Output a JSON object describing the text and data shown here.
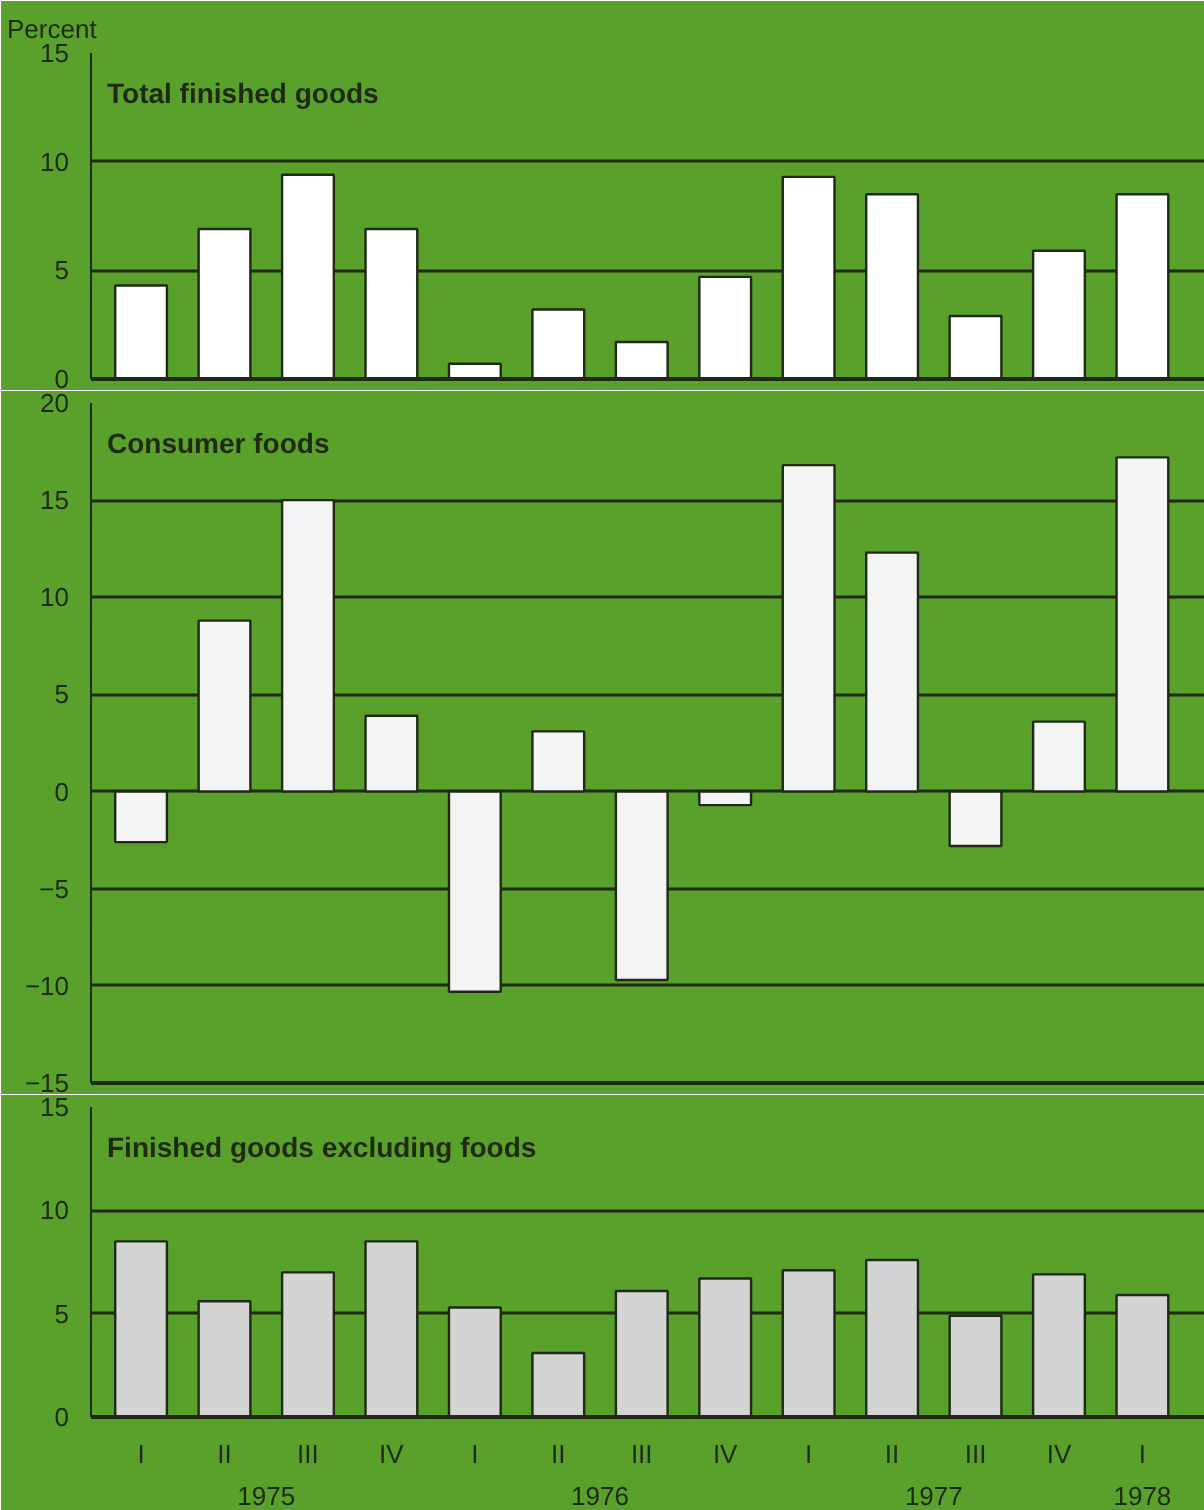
{
  "chart_data": [
    {
      "type": "bar",
      "title": "Total finished goods",
      "ylabel": "Percent",
      "categories": [
        null,
        null,
        null,
        null,
        null,
        null,
        null,
        null,
        null,
        null,
        null,
        null,
        null
      ],
      "series": [
        {
          "color": "#ffffff",
          "values": [
            4.3,
            6.9,
            9.4,
            6.9,
            0.7,
            3.2,
            1.7,
            4.7,
            9.3,
            8.5,
            2.9,
            5.9,
            8.5
          ]
        }
      ],
      "ylim": [
        0,
        15
      ],
      "yticks": [
        0,
        5,
        10,
        15
      ],
      "grid": "y",
      "tick_labels": "y"
    },
    {
      "type": "bar",
      "title": "Consumer foods",
      "categories": [
        null,
        null,
        null,
        null,
        null,
        null,
        null,
        null,
        null,
        null,
        null,
        null,
        null
      ],
      "series": [
        {
          "color": "#f4f4f4",
          "values": [
            -2.6,
            8.8,
            15.0,
            3.9,
            -10.3,
            3.1,
            -9.7,
            -0.7,
            16.8,
            12.3,
            -2.8,
            3.6,
            17.2
          ]
        }
      ],
      "ylim": [
        -15,
        20
      ],
      "yticks": [
        {
          "value": -15,
          "label": "−15"
        },
        {
          "value": -10,
          "label": "−10"
        },
        {
          "value": -5,
          "label": "−5"
        },
        0,
        5,
        10,
        15,
        20
      ],
      "grid": "y",
      "tick_labels": "y"
    },
    {
      "type": "bar",
      "title": "Finished goods excluding foods",
      "categories": [
        "I",
        "II",
        "III",
        "IV",
        "I",
        "II",
        "III",
        "IV",
        "I",
        "II",
        "III",
        "IV",
        "I"
      ],
      "series": [
        {
          "color": "#d4d4d4",
          "values": [
            8.5,
            5.6,
            7.0,
            8.5,
            5.3,
            3.1,
            6.1,
            6.7,
            7.1,
            7.6,
            4.9,
            6.9,
            5.9
          ]
        }
      ],
      "ylim": [
        0,
        15
      ],
      "yticks": [
        0,
        5,
        10,
        15
      ],
      "grid": "y",
      "annotations": [
        "1975",
        "1976",
        "1977",
        "1978"
      ]
    }
  ]
}
